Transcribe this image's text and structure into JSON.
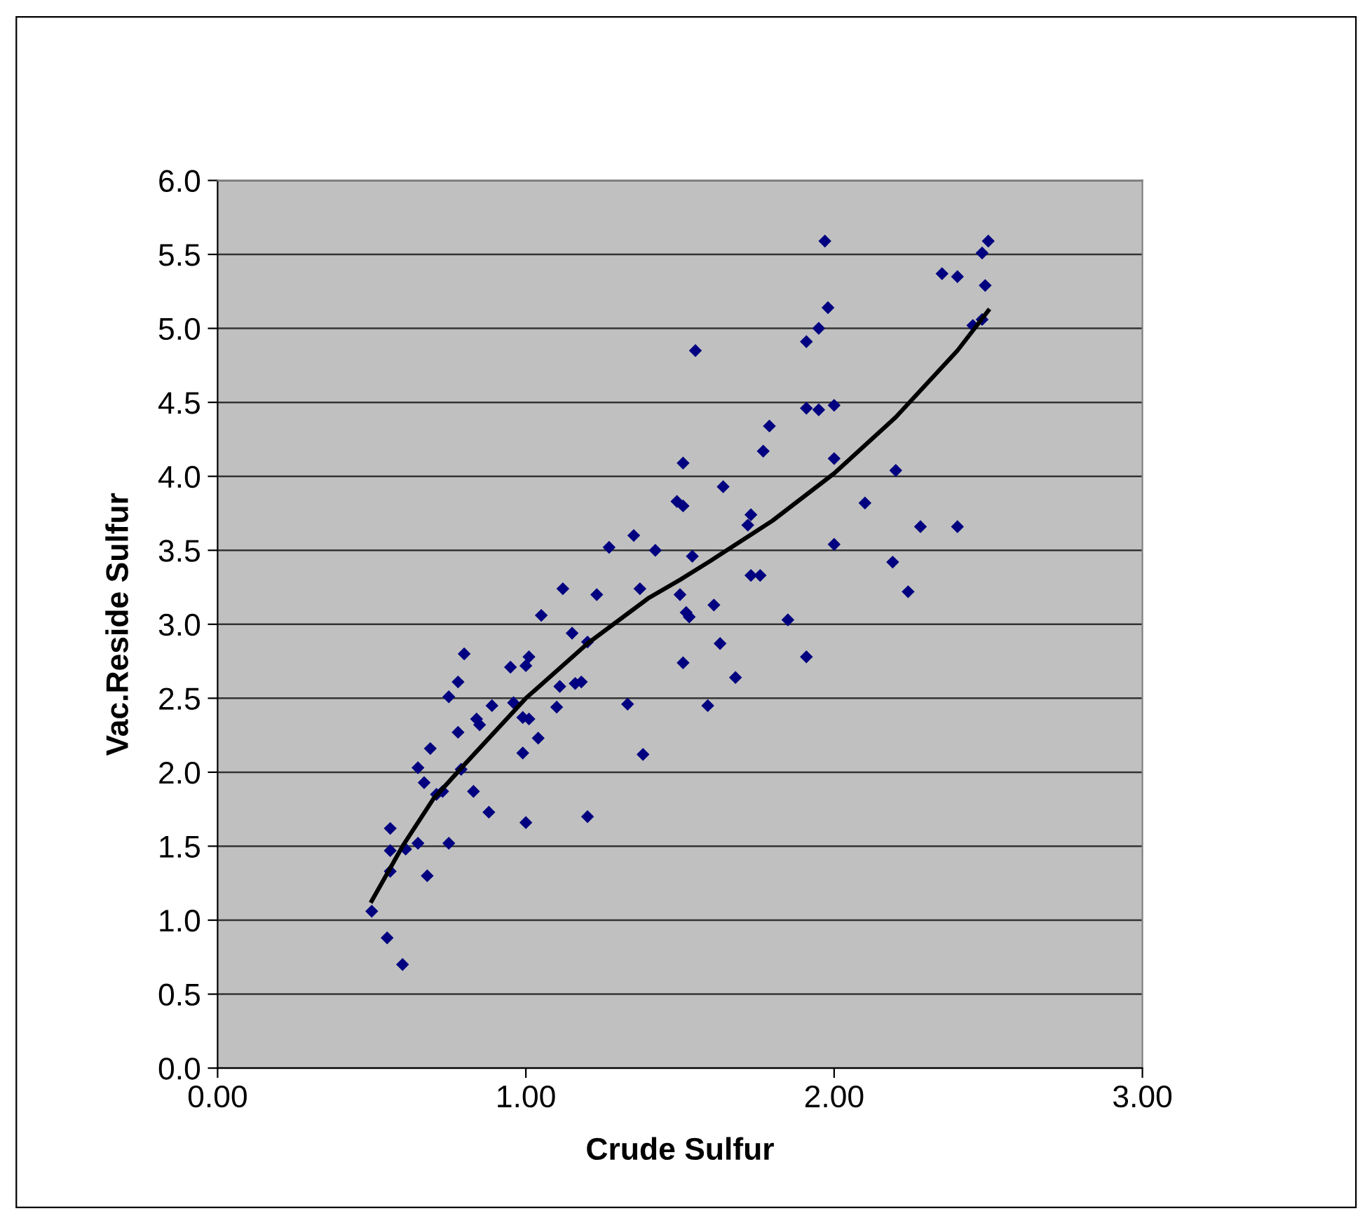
{
  "chart_data": {
    "type": "scatter",
    "xlabel": "Crude Sulfur",
    "ylabel": "Vac.Reside Sulfur",
    "xlim": [
      0,
      3
    ],
    "xticks": [
      {
        "value": 0,
        "label": "0.00"
      },
      {
        "value": 1,
        "label": "1.00"
      },
      {
        "value": 2,
        "label": "2.00"
      },
      {
        "value": 3,
        "label": "3.00"
      }
    ],
    "ylim": [
      0,
      6
    ],
    "yticks": [
      {
        "value": 0,
        "label": "0.0"
      },
      {
        "value": 0.5,
        "label": "0.5"
      },
      {
        "value": 1,
        "label": "1.0"
      },
      {
        "value": 1.5,
        "label": "1.5"
      },
      {
        "value": 2,
        "label": "2.0"
      },
      {
        "value": 2.5,
        "label": "2.5"
      },
      {
        "value": 3,
        "label": "3.0"
      },
      {
        "value": 3.5,
        "label": "3.5"
      },
      {
        "value": 4,
        "label": "4.0"
      },
      {
        "value": 4.5,
        "label": "4.5"
      },
      {
        "value": 5,
        "label": "5.0"
      },
      {
        "value": 5.5,
        "label": "5.5"
      },
      {
        "value": 6,
        "label": "6.0"
      }
    ],
    "grid": "y",
    "legend": false,
    "series": [
      {
        "color": "#000080",
        "marker": "diamond",
        "x": [
          0.5,
          0.55,
          0.6,
          0.56,
          0.56,
          0.56,
          0.61,
          0.65,
          0.68,
          0.65,
          0.67,
          0.69,
          0.71,
          0.73,
          0.75,
          0.75,
          0.78,
          0.8,
          0.78,
          0.79,
          0.83,
          0.84,
          0.85,
          0.88,
          0.89,
          0.95,
          0.96,
          0.99,
          0.99,
          1.0,
          1.01,
          1.0,
          1.01,
          1.04,
          1.05,
          1.1,
          1.11,
          1.12,
          1.15,
          1.16,
          1.18,
          1.2,
          1.2,
          1.23,
          1.27,
          1.33,
          1.35,
          1.37,
          1.38,
          1.42,
          1.49,
          1.51,
          1.51,
          1.5,
          1.51,
          1.52,
          1.53,
          1.55,
          1.54,
          1.59,
          1.61,
          1.63,
          1.64,
          1.68,
          1.73,
          1.72,
          1.73,
          1.76,
          1.77,
          1.79,
          1.85,
          1.91,
          1.91,
          1.91,
          1.95,
          1.95,
          1.97,
          1.98,
          2.0,
          2.0,
          2.0,
          2.1,
          2.2,
          2.19,
          2.24,
          2.28,
          2.35,
          2.4,
          2.4,
          2.45,
          2.48,
          2.49,
          2.5,
          2.48
        ],
        "values": [
          1.06,
          0.88,
          0.7,
          1.62,
          1.47,
          1.33,
          1.48,
          1.52,
          1.3,
          2.03,
          1.93,
          2.16,
          1.85,
          1.87,
          1.52,
          2.51,
          2.61,
          2.8,
          2.27,
          2.02,
          1.87,
          2.36,
          2.32,
          1.73,
          2.45,
          2.71,
          2.47,
          2.37,
          2.13,
          1.66,
          2.78,
          2.72,
          2.36,
          2.23,
          3.06,
          2.44,
          2.58,
          3.24,
          2.94,
          2.6,
          2.61,
          1.7,
          2.88,
          3.2,
          3.52,
          2.46,
          3.6,
          3.24,
          2.12,
          3.5,
          3.83,
          3.8,
          4.09,
          3.2,
          2.74,
          3.08,
          3.05,
          4.85,
          3.46,
          2.45,
          3.13,
          2.87,
          3.93,
          2.64,
          3.74,
          3.67,
          3.33,
          3.33,
          4.17,
          4.34,
          3.03,
          4.91,
          4.46,
          2.78,
          5.0,
          4.45,
          5.59,
          5.14,
          4.48,
          4.12,
          3.54,
          3.82,
          4.04,
          3.42,
          3.22,
          3.66,
          5.37,
          5.35,
          3.66,
          5.02,
          5.51,
          5.29,
          5.59,
          5.06
        ]
      },
      {
        "type": "line",
        "color": "#000000",
        "marker": "none",
        "line_style": "solid",
        "x": [
          0.5,
          0.6,
          0.7,
          0.8,
          1.0,
          1.2,
          1.4,
          1.5,
          1.6,
          1.8,
          2.0,
          2.2,
          2.4,
          2.5
        ],
        "values": [
          1.13,
          1.5,
          1.82,
          2.05,
          2.5,
          2.87,
          3.18,
          3.3,
          3.43,
          3.7,
          4.02,
          4.4,
          4.85,
          5.12
        ]
      }
    ]
  }
}
